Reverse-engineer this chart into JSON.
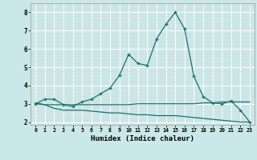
{
  "xlabel": "Humidex (Indice chaleur)",
  "bg_color": "#cbe8e8",
  "grid_color": "#b8d8d8",
  "line_color": "#1a7070",
  "xlim": [
    -0.5,
    23.5
  ],
  "ylim": [
    1.85,
    8.5
  ],
  "yticks": [
    2,
    3,
    4,
    5,
    6,
    7,
    8
  ],
  "xticks": [
    0,
    1,
    2,
    3,
    4,
    5,
    6,
    7,
    8,
    9,
    10,
    11,
    12,
    13,
    14,
    15,
    16,
    17,
    18,
    19,
    20,
    21,
    22,
    23
  ],
  "line1_x": [
    0,
    1,
    2,
    3,
    4,
    5,
    6,
    7,
    8,
    9,
    10,
    11,
    12,
    13,
    14,
    15,
    16,
    17,
    18,
    19,
    20,
    21,
    22,
    23
  ],
  "line1_y": [
    3.0,
    3.25,
    3.25,
    2.95,
    2.85,
    3.1,
    3.25,
    3.55,
    3.85,
    4.55,
    5.7,
    5.2,
    5.1,
    6.55,
    7.35,
    8.0,
    7.1,
    4.5,
    3.4,
    3.05,
    3.0,
    3.15,
    2.65,
    2.0
  ],
  "line2_x": [
    0,
    1,
    2,
    3,
    4,
    5,
    6,
    7,
    8,
    9,
    10,
    11,
    12,
    13,
    14,
    15,
    16,
    17,
    18,
    19,
    20,
    21,
    22,
    23
  ],
  "line2_y": [
    3.05,
    2.95,
    2.95,
    2.95,
    2.95,
    2.95,
    2.95,
    2.95,
    2.95,
    2.95,
    2.95,
    3.0,
    3.0,
    3.0,
    3.0,
    3.0,
    3.0,
    3.0,
    3.05,
    3.05,
    3.1,
    3.1,
    3.1,
    3.1
  ],
  "line3_x": [
    0,
    1,
    2,
    3,
    4,
    5,
    6,
    7,
    8,
    9,
    10,
    11,
    12,
    13,
    14,
    15,
    16,
    17,
    18,
    19,
    20,
    21,
    22,
    23
  ],
  "line3_y": [
    3.0,
    2.95,
    2.75,
    2.65,
    2.65,
    2.65,
    2.6,
    2.55,
    2.5,
    2.5,
    2.45,
    2.4,
    2.4,
    2.35,
    2.35,
    2.35,
    2.3,
    2.25,
    2.2,
    2.15,
    2.1,
    2.05,
    2.0,
    2.0
  ]
}
